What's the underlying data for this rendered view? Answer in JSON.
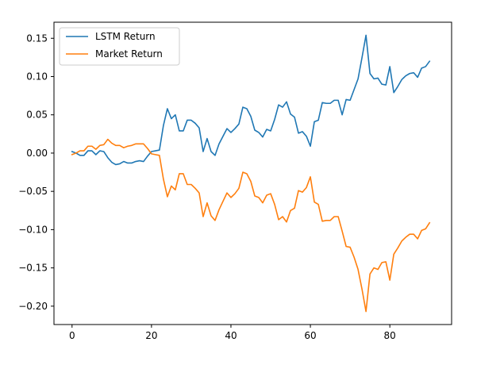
{
  "chart_data": {
    "type": "line",
    "title": "",
    "xlabel": "",
    "ylabel": "",
    "xlim": [
      -4.55,
      95.55
    ],
    "ylim": [
      -0.224,
      0.171
    ],
    "xticks": [
      0,
      20,
      40,
      60,
      80
    ],
    "yticks": [
      -0.2,
      -0.15,
      -0.1,
      -0.05,
      0.0,
      0.05,
      0.1,
      0.15
    ],
    "xtick_labels": [
      "0",
      "20",
      "40",
      "60",
      "80"
    ],
    "ytick_labels": [
      "−0.20",
      "−0.15",
      "−0.10",
      "−0.05",
      "0.00",
      "0.05",
      "0.10",
      "0.15"
    ],
    "grid": false,
    "legend": "top-left",
    "x": [
      0,
      1,
      2,
      3,
      4,
      5,
      6,
      7,
      8,
      9,
      10,
      11,
      12,
      13,
      14,
      15,
      16,
      17,
      18,
      19,
      20,
      21,
      22,
      23,
      24,
      25,
      26,
      27,
      28,
      29,
      30,
      31,
      32,
      33,
      34,
      35,
      36,
      37,
      38,
      39,
      40,
      41,
      42,
      43,
      44,
      45,
      46,
      47,
      48,
      49,
      50,
      51,
      52,
      53,
      54,
      55,
      56,
      57,
      58,
      59,
      60,
      61,
      62,
      63,
      64,
      65,
      66,
      67,
      68,
      69,
      70,
      71,
      72,
      73,
      74,
      75,
      76,
      77,
      78,
      79,
      80,
      81,
      82,
      83,
      84,
      85,
      86,
      87,
      88,
      89,
      90
    ],
    "series": [
      {
        "name": "LSTM Return",
        "color": "#1f77b4",
        "values": [
          0.002,
          0.0,
          -0.003,
          -0.003,
          0.003,
          0.003,
          -0.002,
          0.003,
          0.002,
          -0.006,
          -0.012,
          -0.015,
          -0.014,
          -0.011,
          -0.013,
          -0.013,
          -0.011,
          -0.01,
          -0.011,
          -0.004,
          0.002,
          0.003,
          0.004,
          0.036,
          0.058,
          0.045,
          0.05,
          0.029,
          0.029,
          0.043,
          0.043,
          0.039,
          0.033,
          0.002,
          0.019,
          0.002,
          -0.003,
          0.012,
          0.022,
          0.032,
          0.027,
          0.032,
          0.038,
          0.06,
          0.058,
          0.048,
          0.03,
          0.027,
          0.021,
          0.031,
          0.029,
          0.044,
          0.063,
          0.06,
          0.067,
          0.051,
          0.047,
          0.026,
          0.028,
          0.022,
          0.009,
          0.041,
          0.043,
          0.066,
          0.065,
          0.065,
          0.069,
          0.069,
          0.05,
          0.07,
          0.069,
          0.083,
          0.097,
          0.125,
          0.154,
          0.104,
          0.097,
          0.098,
          0.09,
          0.089,
          0.113,
          0.079,
          0.087,
          0.096,
          0.101,
          0.104,
          0.105,
          0.099,
          0.111,
          0.113,
          0.12
        ]
      },
      {
        "name": "Market Return",
        "color": "#ff7f0e",
        "values": [
          -0.002,
          0.0,
          0.003,
          0.003,
          0.009,
          0.009,
          0.005,
          0.01,
          0.011,
          0.018,
          0.013,
          0.01,
          0.01,
          0.007,
          0.009,
          0.01,
          0.012,
          0.012,
          0.012,
          0.006,
          -0.001,
          -0.002,
          -0.003,
          -0.034,
          -0.057,
          -0.043,
          -0.048,
          -0.027,
          -0.027,
          -0.041,
          -0.041,
          -0.046,
          -0.052,
          -0.083,
          -0.065,
          -0.082,
          -0.088,
          -0.074,
          -0.063,
          -0.052,
          -0.058,
          -0.053,
          -0.046,
          -0.025,
          -0.027,
          -0.037,
          -0.056,
          -0.058,
          -0.065,
          -0.055,
          -0.053,
          -0.067,
          -0.087,
          -0.083,
          -0.09,
          -0.075,
          -0.072,
          -0.049,
          -0.051,
          -0.045,
          -0.031,
          -0.064,
          -0.067,
          -0.089,
          -0.088,
          -0.088,
          -0.083,
          -0.083,
          -0.102,
          -0.122,
          -0.123,
          -0.136,
          -0.152,
          -0.178,
          -0.207,
          -0.158,
          -0.15,
          -0.152,
          -0.143,
          -0.142,
          -0.166,
          -0.132,
          -0.124,
          -0.115,
          -0.11,
          -0.106,
          -0.106,
          -0.112,
          -0.101,
          -0.099,
          -0.091
        ]
      }
    ]
  }
}
